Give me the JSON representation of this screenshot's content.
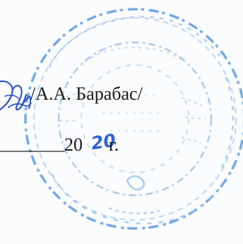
{
  "document": {
    "signatory_line": "/А.А. Барабас/",
    "year_prefix": "20",
    "year_handwritten": "20",
    "year_suffix": "г."
  },
  "stamp": {
    "ink_color": "#3c86d8",
    "legible_text": ""
  },
  "signature": {
    "ink_color": "#2c54c9"
  }
}
